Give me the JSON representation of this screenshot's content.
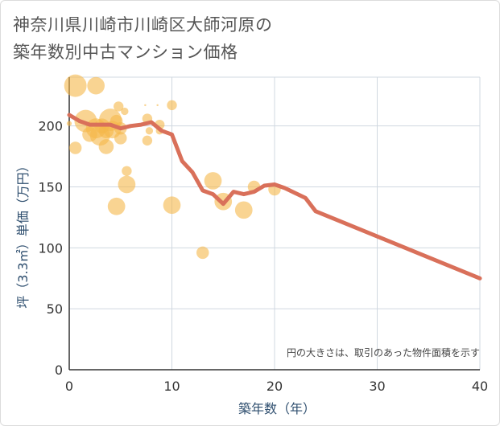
{
  "page": {
    "title_line1": "神奈川県川崎市川崎区大師河原の",
    "title_line2": "築年数別中古マンション価格"
  },
  "chart_data": {
    "type": "scatter",
    "xlabel": "築年数（年）",
    "ylabel": "坪（3.3㎡）単価（万円）",
    "xlim": [
      0,
      40
    ],
    "ylim": [
      0,
      240
    ],
    "x_ticks": [
      "0",
      "10",
      "20",
      "30",
      "40"
    ],
    "y_ticks": [
      "0",
      "50",
      "100",
      "150",
      "200"
    ],
    "grid": true,
    "note": "円の大きさは、取引のあった物件面積を示す",
    "colors": {
      "bubble": "#f5b84a",
      "line": "#d9705a",
      "grid": "#d0d8e0"
    },
    "bubbles": [
      {
        "x": 0,
        "y": 202,
        "size": 2
      },
      {
        "x": 0.6,
        "y": 233,
        "size": 9
      },
      {
        "x": 0.6,
        "y": 182,
        "size": 5
      },
      {
        "x": 1.6,
        "y": 204,
        "size": 9
      },
      {
        "x": 2,
        "y": 193,
        "size": 6
      },
      {
        "x": 2.6,
        "y": 198,
        "size": 8
      },
      {
        "x": 2.6,
        "y": 233,
        "size": 7
      },
      {
        "x": 3,
        "y": 192,
        "size": 8
      },
      {
        "x": 3.2,
        "y": 200,
        "size": 6
      },
      {
        "x": 3.6,
        "y": 196,
        "size": 6
      },
      {
        "x": 3.6,
        "y": 183,
        "size": 6
      },
      {
        "x": 4,
        "y": 205,
        "size": 9
      },
      {
        "x": 4.2,
        "y": 197,
        "size": 7
      },
      {
        "x": 4.6,
        "y": 204,
        "size": 5
      },
      {
        "x": 4.8,
        "y": 216,
        "size": 4
      },
      {
        "x": 5,
        "y": 198,
        "size": 5
      },
      {
        "x": 5,
        "y": 190,
        "size": 5
      },
      {
        "x": 5.4,
        "y": 212,
        "size": 3
      },
      {
        "x": 5.6,
        "y": 163,
        "size": 4
      },
      {
        "x": 5.6,
        "y": 152,
        "size": 7
      },
      {
        "x": 4.6,
        "y": 134,
        "size": 7
      },
      {
        "x": 7.4,
        "y": 217,
        "size": 0.8
      },
      {
        "x": 7.6,
        "y": 206,
        "size": 4
      },
      {
        "x": 7.6,
        "y": 188,
        "size": 4
      },
      {
        "x": 7.8,
        "y": 196,
        "size": 3
      },
      {
        "x": 8.6,
        "y": 217,
        "size": 0.8
      },
      {
        "x": 8.8,
        "y": 201,
        "size": 4
      },
      {
        "x": 8.8,
        "y": 196,
        "size": 3
      },
      {
        "x": 10,
        "y": 217,
        "size": 4
      },
      {
        "x": 10,
        "y": 135,
        "size": 7
      },
      {
        "x": 13,
        "y": 96,
        "size": 5
      },
      {
        "x": 14,
        "y": 155,
        "size": 7
      },
      {
        "x": 15,
        "y": 138,
        "size": 7
      },
      {
        "x": 17,
        "y": 131,
        "size": 7
      },
      {
        "x": 18,
        "y": 150,
        "size": 5
      },
      {
        "x": 20,
        "y": 148,
        "size": 5
      }
    ],
    "series": [
      {
        "x": [
          0,
          1,
          2,
          3,
          4,
          5,
          6,
          7,
          8,
          9,
          10,
          11,
          12,
          13,
          14,
          15,
          16,
          17,
          18,
          19,
          20,
          21,
          22,
          23,
          24,
          40
        ],
        "y": [
          209,
          204,
          201,
          201,
          201,
          198,
          200,
          201,
          203,
          196,
          193,
          171,
          162,
          147,
          144,
          136,
          146,
          144,
          146,
          151,
          152,
          149,
          145,
          141,
          130,
          75
        ]
      }
    ]
  }
}
